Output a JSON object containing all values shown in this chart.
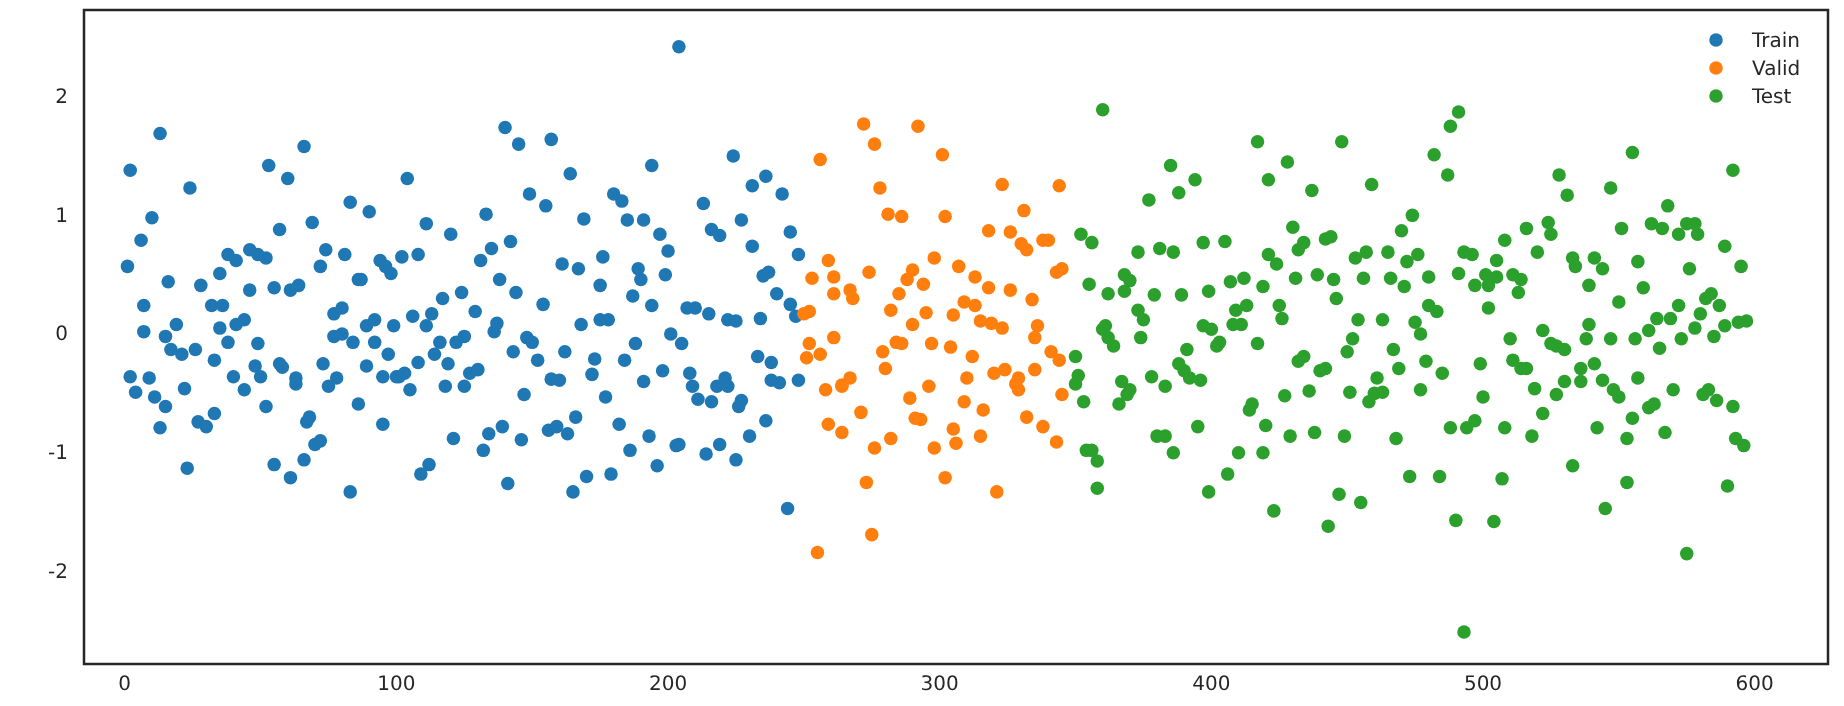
{
  "chart_data": {
    "type": "scatter",
    "xlim": [
      -15,
      627
    ],
    "ylim": [
      -2.78,
      2.73
    ],
    "xticks": [
      0,
      100,
      200,
      300,
      400,
      500,
      600
    ],
    "yticks": [
      -2,
      -1,
      0,
      1,
      2
    ],
    "legend": "top right",
    "marker": "circle",
    "series": [
      {
        "name": "Train",
        "color": "#1f77b4",
        "x": [
          13,
          2,
          24,
          10,
          6,
          1,
          16,
          7,
          7,
          19,
          15,
          17,
          21,
          26,
          2,
          4,
          9,
          11,
          13,
          15,
          22,
          23,
          27,
          30,
          33,
          33,
          28,
          32,
          35,
          38,
          35,
          36,
          38,
          40,
          41,
          41,
          44,
          44,
          46,
          46,
          48,
          49,
          49,
          52,
          50,
          53,
          52,
          55,
          55,
          57,
          57,
          58,
          60,
          61,
          61,
          63,
          63,
          64,
          66,
          69,
          67,
          68,
          66,
          70,
          72,
          72,
          73,
          74,
          77,
          77,
          75,
          78,
          80,
          80,
          81,
          83,
          83,
          84,
          86,
          86,
          87,
          89,
          89,
          90,
          92,
          92,
          94,
          95,
          95,
          96,
          97,
          98,
          99,
          100,
          104,
          102,
          108,
          111,
          106,
          111,
          101,
          103,
          105,
          108,
          109,
          112,
          113,
          114,
          116,
          117,
          118,
          119,
          120,
          121,
          122,
          124,
          125,
          125,
          127,
          129,
          130,
          131,
          132,
          133,
          134,
          135,
          136,
          137,
          138,
          139,
          140,
          141,
          142,
          143,
          144,
          145,
          146,
          147,
          148,
          149,
          150,
          152,
          154,
          155,
          156,
          157,
          157,
          159,
          160,
          161,
          162,
          163,
          164,
          165,
          166,
          167,
          169,
          168,
          170,
          172,
          173,
          175,
          175,
          176,
          177,
          178,
          179,
          180,
          182,
          183,
          184,
          185,
          186,
          187,
          188,
          189,
          190,
          191,
          191,
          193,
          194,
          194,
          196,
          197,
          198,
          199,
          200,
          201,
          203,
          204,
          204,
          205,
          207,
          208,
          209,
          210,
          211,
          213,
          214,
          215,
          216,
          219,
          224,
          227,
          231,
          231,
          236,
          242,
          245,
          248,
          235,
          237,
          240,
          245,
          247,
          222,
          225,
          234,
          233,
          238,
          238,
          241,
          248,
          218,
          221,
          222,
          216,
          226,
          227,
          236,
          230,
          219,
          225,
          244
        ],
        "values": [
          1.69,
          1.38,
          1.23,
          0.98,
          0.79,
          0.57,
          0.44,
          0.24,
          0.02,
          0.08,
          -0.02,
          -0.13,
          -0.17,
          -0.13,
          -0.36,
          -0.49,
          -0.37,
          -0.53,
          -0.79,
          -0.61,
          -0.46,
          -1.13,
          -0.74,
          -0.78,
          -0.22,
          -0.67,
          0.41,
          0.24,
          0.51,
          0.67,
          0.05,
          0.24,
          -0.07,
          -0.36,
          0.62,
          0.08,
          0.12,
          -0.47,
          0.71,
          0.37,
          -0.27,
          -0.08,
          0.67,
          0.64,
          -0.36,
          1.42,
          -0.61,
          0.39,
          -1.1,
          0.88,
          -0.25,
          -0.28,
          1.31,
          -1.21,
          0.37,
          -0.37,
          -0.42,
          0.41,
          1.58,
          0.94,
          -0.74,
          -0.7,
          -1.06,
          -0.93,
          0.57,
          -0.9,
          -0.25,
          0.71,
          0.17,
          -0.02,
          -0.44,
          -0.37,
          0.22,
          0.0,
          0.67,
          -1.33,
          1.11,
          -0.07,
          -0.59,
          0.46,
          0.46,
          -0.27,
          0.07,
          1.03,
          0.12,
          -0.07,
          0.62,
          -0.36,
          -0.76,
          0.57,
          -0.17,
          0.51,
          0.07,
          -0.36,
          1.31,
          0.65,
          0.67,
          0.93,
          0.15,
          0.07,
          -0.36,
          -0.33,
          -0.47,
          -0.24,
          -1.18,
          -1.1,
          0.17,
          -0.17,
          -0.07,
          0.3,
          -0.44,
          -0.25,
          0.84,
          -0.88,
          -0.07,
          0.35,
          -0.02,
          -0.44,
          -0.33,
          0.19,
          -0.3,
          0.62,
          -0.98,
          1.01,
          -0.84,
          0.72,
          0.02,
          0.09,
          0.46,
          -0.78,
          1.74,
          -1.26,
          0.78,
          -0.15,
          0.35,
          1.6,
          -0.89,
          -0.51,
          -0.03,
          1.18,
          -0.07,
          -0.22,
          0.25,
          1.08,
          -0.81,
          1.64,
          -0.38,
          -0.78,
          -0.39,
          0.59,
          -0.15,
          -0.84,
          1.35,
          -1.33,
          -0.7,
          0.55,
          0.97,
          0.08,
          -1.2,
          -0.34,
          -0.21,
          0.41,
          0.12,
          0.65,
          -0.53,
          0.12,
          -1.18,
          1.18,
          -0.76,
          1.12,
          -0.22,
          0.96,
          -0.98,
          0.32,
          -0.08,
          0.55,
          0.46,
          -0.4,
          0.96,
          -0.86,
          0.24,
          1.42,
          -1.11,
          0.84,
          -0.31,
          0.5,
          0.7,
          0.0,
          -0.94,
          2.42,
          -0.93,
          -0.08,
          0.22,
          -0.33,
          -0.44,
          0.22,
          -0.55,
          1.1,
          -1.01,
          0.17,
          0.88,
          0.83,
          1.5,
          0.96,
          0.74,
          1.25,
          1.33,
          1.18,
          0.86,
          0.67,
          0.49,
          0.52,
          0.34,
          0.25,
          0.15,
          0.12,
          0.11,
          0.13,
          -0.19,
          -0.24,
          -0.39,
          -0.41,
          -0.39,
          -0.44,
          -0.37,
          -0.44,
          -0.57,
          -0.61,
          -0.56,
          -0.73,
          -0.86,
          -0.93,
          -1.06,
          -1.47
        ]
      },
      {
        "name": "Valid",
        "color": "#ff7f0e",
        "x": [
          250,
          252,
          253,
          256,
          259,
          252,
          251,
          256,
          261,
          258,
          255,
          259,
          261,
          261,
          264,
          264,
          264,
          267,
          267,
          268,
          271,
          272,
          273,
          274,
          275,
          276,
          276,
          278,
          279,
          280,
          281,
          282,
          282,
          284,
          285,
          286,
          286,
          288,
          289,
          290,
          290,
          291,
          292,
          293,
          294,
          295,
          296,
          297,
          298,
          298,
          301,
          302,
          302,
          304,
          305,
          305,
          306,
          307,
          309,
          309,
          310,
          312,
          313,
          313,
          315,
          315,
          316,
          318,
          318,
          319,
          321,
          320,
          323,
          323,
          324,
          326,
          326,
          328,
          331,
          330,
          332,
          338,
          340,
          344,
          343,
          345,
          334,
          336,
          335,
          341,
          344,
          329,
          329,
          335,
          345,
          332,
          338,
          343
        ],
        "values": [
          0.17,
          0.19,
          0.47,
          1.47,
          0.62,
          -0.08,
          -0.2,
          -0.17,
          -0.03,
          -0.47,
          -1.84,
          -0.76,
          0.48,
          0.34,
          -0.83,
          -0.44,
          -0.43,
          -0.37,
          0.37,
          0.3,
          -0.66,
          1.77,
          -1.25,
          0.52,
          -1.69,
          1.6,
          -0.96,
          1.23,
          -0.15,
          -0.29,
          1.01,
          -0.88,
          0.2,
          -0.07,
          0.34,
          0.99,
          -0.08,
          0.46,
          -0.54,
          0.54,
          0.08,
          -0.71,
          1.75,
          -0.72,
          0.42,
          0.18,
          -0.44,
          -0.08,
          0.64,
          -0.96,
          1.51,
          -1.21,
          0.99,
          -0.11,
          -0.8,
          0.16,
          -0.92,
          0.57,
          0.27,
          -0.57,
          -0.37,
          -0.19,
          0.24,
          0.48,
          -0.86,
          0.11,
          -0.64,
          0.87,
          0.39,
          0.09,
          -1.33,
          -0.33,
          1.26,
          0.05,
          -0.3,
          0.37,
          0.86,
          -0.42,
          1.04,
          0.76,
          0.71,
          0.79,
          0.79,
          1.25,
          0.52,
          0.55,
          0.29,
          0.07,
          -0.03,
          -0.15,
          -0.22,
          -0.37,
          -0.47,
          -0.3,
          -0.51,
          -0.7,
          -0.78,
          -0.91
        ]
      },
      {
        "name": "Test",
        "color": "#2ca02c",
        "x": [
          350,
          351,
          350,
          353,
          352,
          356,
          355,
          360,
          354,
          356,
          358,
          358,
          360,
          361,
          362,
          362,
          364,
          367,
          366,
          368,
          368,
          370,
          369,
          370,
          373,
          373,
          374,
          375,
          377,
          378,
          379,
          380,
          381,
          383,
          383,
          385,
          386,
          386,
          388,
          388,
          389,
          390,
          391,
          392,
          394,
          395,
          396,
          397,
          397,
          399,
          399,
          400,
          402,
          403,
          405,
          406,
          407,
          408,
          409,
          410,
          411,
          412,
          413,
          414,
          415,
          417,
          417,
          419,
          419,
          420,
          421,
          421,
          423,
          424,
          425,
          426,
          427,
          428,
          429,
          430,
          431,
          432,
          432,
          434,
          434,
          436,
          437,
          438,
          439,
          440,
          443,
          442,
          448,
          444,
          445,
          446,
          442,
          449,
          447,
          450,
          451,
          452,
          453,
          454,
          455,
          456,
          457,
          458,
          459,
          460,
          461,
          463,
          463,
          465,
          466,
          467,
          468,
          469,
          470,
          471,
          472,
          473,
          474,
          475,
          476,
          477,
          477,
          479,
          480,
          480,
          482,
          483,
          484,
          485,
          487,
          488,
          488,
          490,
          491,
          491,
          493,
          493,
          494,
          496,
          497,
          497,
          499,
          500,
          501,
          502,
          502,
          504,
          505,
          505,
          507,
          508,
          508,
          510,
          511,
          511,
          513,
          514,
          514,
          516,
          516,
          518,
          519,
          520,
          522,
          522,
          524,
          525,
          525,
          527,
          527,
          528,
          530,
          530,
          531,
          533,
          533,
          534,
          536,
          536,
          538,
          539,
          539,
          541,
          541,
          542,
          544,
          544,
          545,
          547,
          547,
          548,
          550,
          550,
          551,
          553,
          553,
          555,
          555,
          556,
          557,
          557,
          559,
          561,
          562,
          561,
          563,
          565,
          564,
          566,
          567,
          568,
          569,
          570,
          572,
          572,
          573,
          575,
          575,
          576,
          578,
          578,
          579,
          580,
          581,
          582,
          583,
          584,
          585,
          586,
          587,
          589,
          589,
          590,
          592,
          592,
          593,
          594,
          595,
          596,
          597
        ],
        "values": [
          -0.19,
          -0.35,
          -0.42,
          -0.57,
          0.84,
          0.77,
          0.42,
          1.89,
          -0.98,
          -0.98,
          -1.07,
          -1.3,
          0.04,
          0.07,
          0.34,
          -0.03,
          -0.1,
          -0.4,
          -0.59,
          0.5,
          0.36,
          0.45,
          -0.51,
          -0.47,
          0.69,
          0.2,
          -0.03,
          0.12,
          1.13,
          -0.36,
          0.33,
          -0.86,
          0.72,
          -0.44,
          -0.86,
          1.42,
          -1.0,
          0.69,
          1.19,
          -0.25,
          0.33,
          -0.31,
          -0.13,
          -0.37,
          1.3,
          -0.78,
          -0.39,
          0.77,
          0.07,
          0.36,
          -1.33,
          0.04,
          -0.1,
          -0.07,
          0.78,
          -1.18,
          0.44,
          0.08,
          0.2,
          -1.0,
          0.08,
          0.47,
          0.24,
          -0.64,
          -0.59,
          1.62,
          -0.08,
          -1.0,
          0.4,
          -0.77,
          1.3,
          0.67,
          -1.49,
          0.59,
          0.24,
          0.13,
          -0.52,
          1.45,
          -0.86,
          0.9,
          0.47,
          0.71,
          -0.23,
          -0.19,
          0.77,
          -0.48,
          1.21,
          -0.83,
          0.5,
          -0.31,
          -1.62,
          0.8,
          1.62,
          0.82,
          0.46,
          0.3,
          -0.29,
          -0.86,
          -1.35,
          -0.15,
          -0.49,
          -0.04,
          0.64,
          0.12,
          -1.42,
          0.47,
          0.69,
          -0.57,
          1.26,
          -0.5,
          -0.37,
          0.12,
          -0.49,
          0.69,
          0.47,
          -0.13,
          -0.88,
          -0.29,
          0.87,
          0.4,
          0.61,
          -1.2,
          1.0,
          0.1,
          0.67,
          -0.47,
          0.0,
          -0.23,
          0.48,
          0.24,
          1.51,
          0.19,
          -1.2,
          -0.33,
          1.34,
          -0.79,
          1.75,
          -1.57,
          0.51,
          1.87,
          -2.51,
          0.69,
          -0.79,
          0.67,
          -0.73,
          0.41,
          -0.25,
          -0.53,
          0.5,
          0.41,
          0.22,
          -1.58,
          0.48,
          0.62,
          -1.22,
          -0.79,
          0.79,
          -0.04,
          0.5,
          -0.22,
          0.35,
          -0.29,
          0.46,
          -0.29,
          0.89,
          -0.86,
          -0.46,
          0.69,
          0.03,
          -0.67,
          0.94,
          0.84,
          -0.08,
          -0.1,
          -0.51,
          1.34,
          -0.4,
          -0.13,
          1.17,
          -1.11,
          0.64,
          0.57,
          -0.29,
          -0.4,
          -0.04,
          0.41,
          0.08,
          -0.25,
          0.64,
          -0.79,
          -0.39,
          0.55,
          -1.47,
          1.23,
          -0.04,
          -0.47,
          -0.53,
          0.27,
          0.89,
          -1.25,
          -0.88,
          1.53,
          -0.71,
          -0.04,
          0.61,
          -0.37,
          0.39,
          0.03,
          0.93,
          -0.62,
          -0.59,
          -0.12,
          0.13,
          0.89,
          -0.83,
          1.08,
          0.13,
          -0.47,
          0.84,
          0.24,
          -0.04,
          0.93,
          -1.85,
          0.55,
          0.05,
          0.93,
          0.84,
          0.17,
          -0.51,
          0.3,
          -0.47,
          0.34,
          -0.02,
          -0.56,
          0.24,
          0.07,
          0.74,
          -1.28,
          -0.61,
          1.38,
          -0.88,
          0.1,
          0.57,
          -0.94,
          0.11
        ]
      }
    ]
  }
}
